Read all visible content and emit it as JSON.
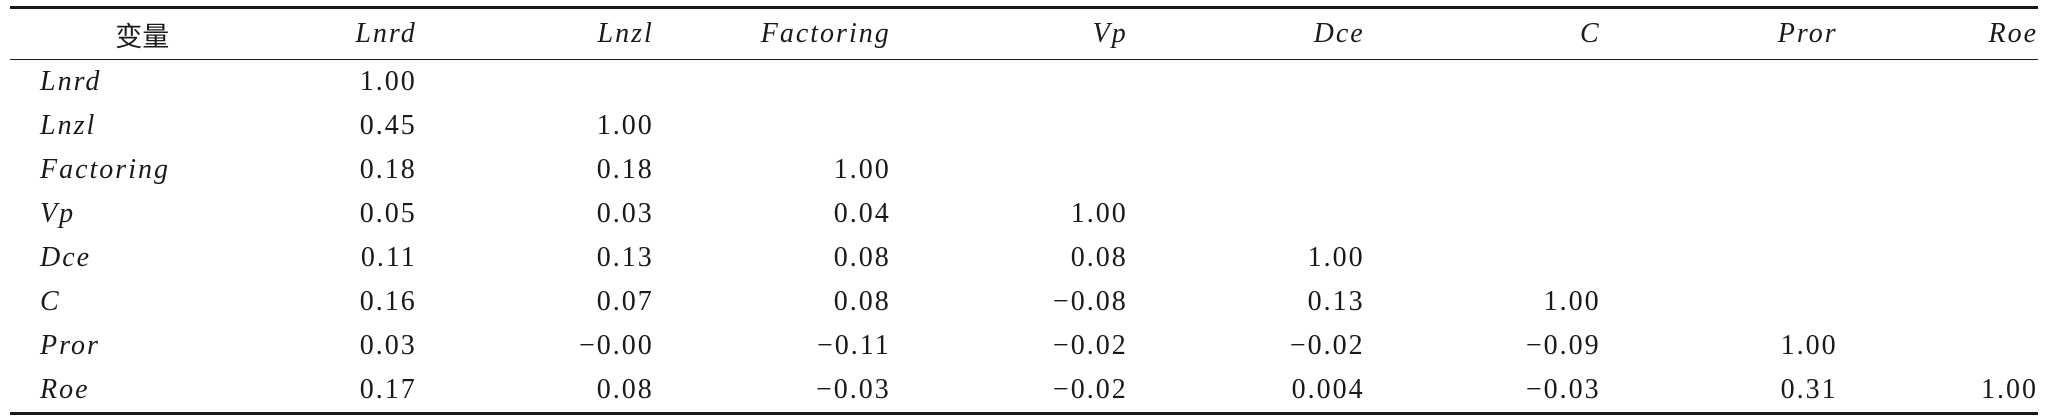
{
  "table": {
    "corner_header": "变量",
    "columns": [
      "Lnrd",
      "Lnzl",
      "Factoring",
      "Vp",
      "Dce",
      "C",
      "Pror",
      "Roe"
    ],
    "rows": [
      {
        "label": "Lnrd",
        "values": [
          "1.00",
          "",
          "",
          "",
          "",
          "",
          "",
          ""
        ]
      },
      {
        "label": "Lnzl",
        "values": [
          "0.45",
          "1.00",
          "",
          "",
          "",
          "",
          "",
          ""
        ]
      },
      {
        "label": "Factoring",
        "values": [
          "0.18",
          "0.18",
          "1.00",
          "",
          "",
          "",
          "",
          ""
        ]
      },
      {
        "label": "Vp",
        "values": [
          "0.05",
          "0.03",
          "0.04",
          "1.00",
          "",
          "",
          "",
          ""
        ]
      },
      {
        "label": "Dce",
        "values": [
          "0.11",
          "0.13",
          "0.08",
          "0.08",
          "1.00",
          "",
          "",
          ""
        ]
      },
      {
        "label": "C",
        "values": [
          "0.16",
          "0.07",
          "0.08",
          "−0.08",
          "0.13",
          "1.00",
          "",
          ""
        ]
      },
      {
        "label": "Pror",
        "values": [
          "0.03",
          "−0.00",
          "−0.11",
          "−0.02",
          "−0.02",
          "−0.09",
          "1.00",
          ""
        ]
      },
      {
        "label": "Roe",
        "values": [
          "0.17",
          "0.08",
          "−0.03",
          "−0.02",
          "0.004",
          "−0.03",
          "0.31",
          "1.00"
        ]
      }
    ]
  }
}
